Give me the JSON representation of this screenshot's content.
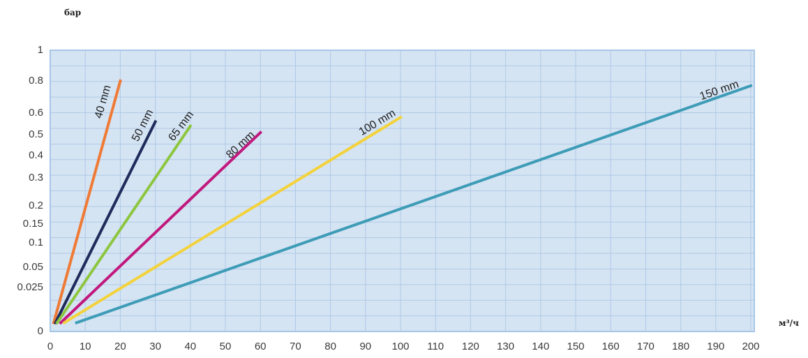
{
  "chart_data": {
    "type": "line",
    "xlabel": "м³/ч",
    "ylabel": "бар",
    "xlim": [
      0,
      200
    ],
    "ylim": [
      0,
      1
    ],
    "y_scale": "custom",
    "grid": true,
    "legend": "none",
    "x_ticks": [
      "0",
      "10",
      "20",
      "30",
      "40",
      "50",
      "60",
      "70",
      "80",
      "90",
      "100",
      "110",
      "120",
      "130",
      "140",
      "150",
      "160",
      "170",
      "180",
      "190",
      "200"
    ],
    "y_ticks": [
      "1",
      "0.8",
      "0.6",
      "0.5",
      "0.4",
      "0.3",
      "0.2",
      "0.15",
      "0.1",
      "0.05",
      "0.025",
      "0"
    ],
    "series": [
      {
        "name": "40 mm",
        "color": "#EF7A35",
        "x": [
          1,
          20
        ],
        "y": [
          0.005,
          0.8
        ]
      },
      {
        "name": "50 mm",
        "color": "#1F2B5B",
        "x": [
          1.5,
          30
        ],
        "y": [
          0.005,
          0.56
        ]
      },
      {
        "name": "65 mm",
        "color": "#8DC63F",
        "x": [
          2,
          40
        ],
        "y": [
          0.005,
          0.54
        ]
      },
      {
        "name": "80 mm",
        "color": "#C1187D",
        "x": [
          3,
          60
        ],
        "y": [
          0.005,
          0.51
        ]
      },
      {
        "name": "100 mm",
        "color": "#F3D23B",
        "x": [
          4,
          100
        ],
        "y": [
          0.005,
          0.58
        ]
      },
      {
        "name": "150 mm",
        "color": "#3E9CB7",
        "x": [
          7.5,
          200
        ],
        "y": [
          0.005,
          0.77
        ]
      }
    ]
  }
}
